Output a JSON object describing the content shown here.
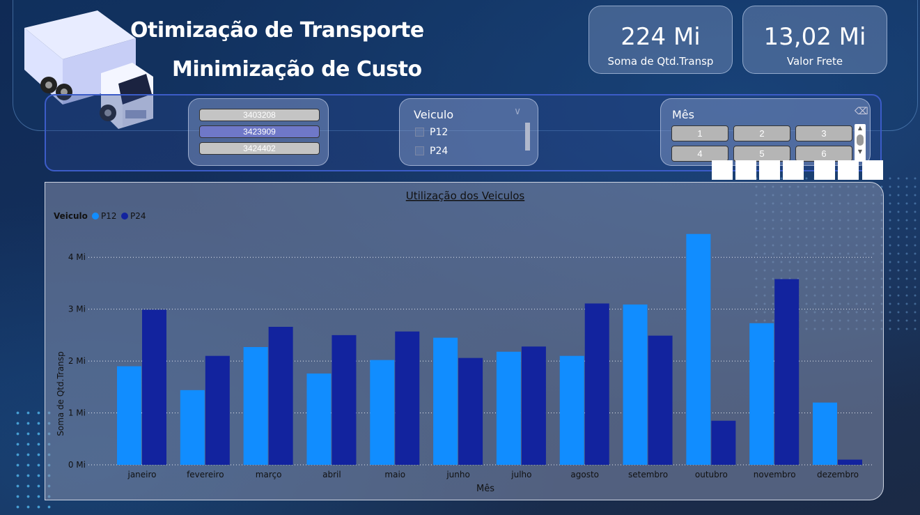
{
  "header": {
    "title1": "Otimização de Transporte",
    "title2": "Minimização de Custo"
  },
  "kpis": [
    {
      "value": "224 Mi",
      "label": "Soma de Qtd.Transp"
    },
    {
      "value": "13,02 Mi",
      "label": "Valor Frete"
    }
  ],
  "ids_slicer": {
    "items": [
      {
        "label": "3403208",
        "selected": false
      },
      {
        "label": "3423909",
        "selected": true
      },
      {
        "label": "3424402",
        "selected": false
      }
    ]
  },
  "veiculo_slicer": {
    "title": "Veiculo",
    "options": [
      "P12",
      "P24"
    ]
  },
  "mes_slicer": {
    "title": "Mês",
    "buttons": [
      "1",
      "2",
      "3",
      "4",
      "5",
      "6"
    ]
  },
  "colors": {
    "p12": "#118dff",
    "p24": "#12239e",
    "selected_id": "#6f78c8"
  },
  "chart_data": {
    "type": "bar",
    "title": "Utilização dos Veiculos",
    "legend_title": "Veiculo",
    "legend_position": "top-left",
    "xlabel": "Mês",
    "ylabel": "Soma de Qtd.Transp",
    "ylim": [
      0,
      4.5
    ],
    "y_ticks": [
      {
        "value": 0,
        "label": "0 Mi"
      },
      {
        "value": 1,
        "label": "1 Mi"
      },
      {
        "value": 2,
        "label": "2 Mi"
      },
      {
        "value": 3,
        "label": "3 Mi"
      },
      {
        "value": 4,
        "label": "4 Mi"
      }
    ],
    "grid": true,
    "categories": [
      "janeiro",
      "fevereiro",
      "março",
      "abril",
      "maio",
      "junho",
      "julho",
      "agosto",
      "setembro",
      "outubro",
      "novembro",
      "dezembro"
    ],
    "series": [
      {
        "name": "P12",
        "values": [
          1.9,
          1.44,
          2.27,
          1.76,
          2.02,
          2.45,
          2.18,
          2.1,
          3.09,
          4.45,
          2.73,
          1.2
        ]
      },
      {
        "name": "P24",
        "values": [
          2.99,
          2.1,
          2.66,
          2.5,
          2.57,
          2.06,
          2.28,
          3.11,
          2.49,
          0.85,
          3.58,
          0.1
        ]
      }
    ]
  }
}
